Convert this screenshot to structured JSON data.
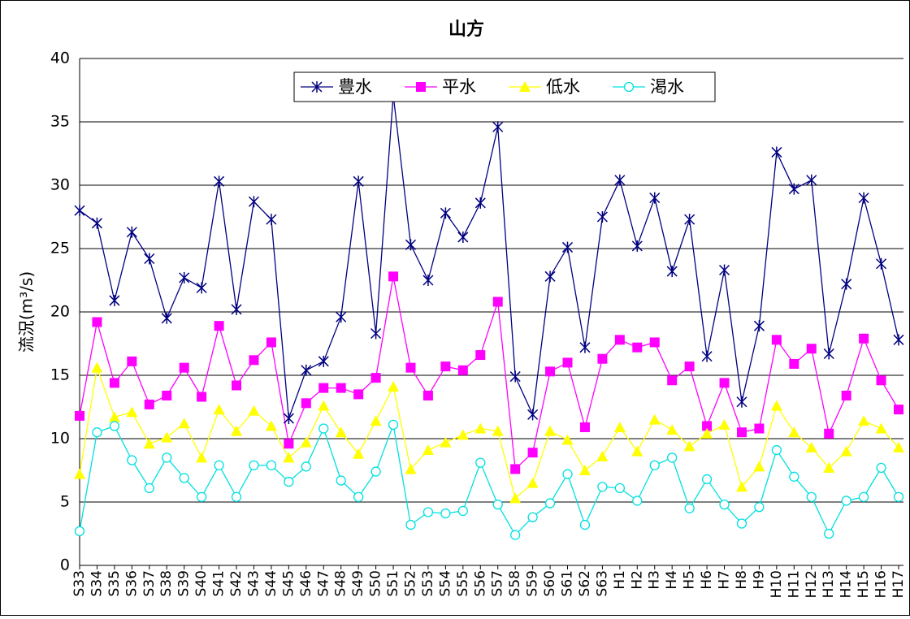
{
  "chart_data": {
    "type": "line",
    "title": "山方",
    "y_label": "流況(m³/s)",
    "categories": [
      "S33",
      "S34",
      "S35",
      "S36",
      "S37",
      "S38",
      "S39",
      "S40",
      "S41",
      "S42",
      "S43",
      "S44",
      "S45",
      "S46",
      "S47",
      "S48",
      "S49",
      "S50",
      "S51",
      "S52",
      "S53",
      "S54",
      "S55",
      "S56",
      "S57",
      "S58",
      "S59",
      "S60",
      "S61",
      "S62",
      "S63",
      "H1",
      "H2",
      "H3",
      "H4",
      "H5",
      "H6",
      "H7",
      "H8",
      "H9",
      "H10",
      "H11",
      "H12",
      "H13",
      "H14",
      "H15",
      "H16",
      "H17"
    ],
    "series": [
      {
        "name": "豊水",
        "color": "#000080",
        "marker": "star",
        "values": [
          28.0,
          27.0,
          20.9,
          26.3,
          24.2,
          19.5,
          22.7,
          21.9,
          30.3,
          20.2,
          28.7,
          27.3,
          11.6,
          15.4,
          16.1,
          19.6,
          30.3,
          18.3,
          37.1,
          25.3,
          22.5,
          27.8,
          25.9,
          28.6,
          34.6,
          14.9,
          11.9,
          22.8,
          25.1,
          17.2,
          27.5,
          30.4,
          25.2,
          29.0,
          23.2,
          27.3,
          16.5,
          23.3,
          12.9,
          18.9,
          32.6,
          29.7,
          30.4,
          16.7,
          22.2,
          29.0,
          23.8,
          17.8
        ]
      },
      {
        "name": "平水",
        "color": "#ff00ff",
        "marker": "square",
        "values": [
          11.8,
          19.2,
          14.4,
          16.1,
          12.7,
          13.4,
          15.6,
          13.3,
          18.9,
          14.2,
          16.2,
          17.6,
          9.6,
          12.8,
          14.0,
          14.0,
          13.5,
          14.8,
          22.8,
          15.6,
          13.4,
          15.7,
          15.4,
          16.6,
          20.8,
          7.6,
          8.9,
          15.3,
          16.0,
          10.9,
          16.3,
          17.8,
          17.2,
          17.6,
          14.6,
          15.7,
          11.0,
          14.4,
          10.5,
          10.8,
          17.8,
          15.9,
          17.1,
          10.4,
          13.4,
          17.9,
          14.6,
          12.3
        ]
      },
      {
        "name": "低水",
        "color": "#ffff00",
        "marker": "triangle",
        "values": [
          7.2,
          15.6,
          11.7,
          12.1,
          9.6,
          10.1,
          11.2,
          8.5,
          12.3,
          10.6,
          12.2,
          11.0,
          8.5,
          9.7,
          12.6,
          10.5,
          8.8,
          11.4,
          14.1,
          7.6,
          9.1,
          9.7,
          10.3,
          10.8,
          10.6,
          5.3,
          6.5,
          10.6,
          9.9,
          7.5,
          8.6,
          10.9,
          9.0,
          11.5,
          10.7,
          9.4,
          10.4,
          11.1,
          6.2,
          7.8,
          12.6,
          10.5,
          9.3,
          7.7,
          9.0,
          11.4,
          10.8,
          9.3
        ]
      },
      {
        "name": "渇水",
        "color": "#00e0e0",
        "marker": "circle",
        "values": [
          2.7,
          10.5,
          11.0,
          8.3,
          6.1,
          8.5,
          6.9,
          5.4,
          7.9,
          5.4,
          7.9,
          7.9,
          6.6,
          7.8,
          10.8,
          6.7,
          5.4,
          7.4,
          11.1,
          3.2,
          4.2,
          4.1,
          4.3,
          8.1,
          4.8,
          2.4,
          3.8,
          4.9,
          7.2,
          3.2,
          6.2,
          6.1,
          5.1,
          7.9,
          8.5,
          4.5,
          6.8,
          4.8,
          3.3,
          4.6,
          9.1,
          7.0,
          5.4,
          2.5,
          5.1,
          5.4,
          7.7,
          5.4
        ]
      }
    ],
    "ylim": [
      0,
      40
    ],
    "yticks": [
      0,
      5,
      10,
      15,
      20,
      25,
      30,
      35,
      40
    ],
    "grid": true
  }
}
